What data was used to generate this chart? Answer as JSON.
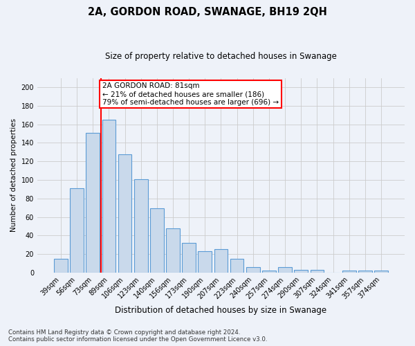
{
  "title": "2A, GORDON ROAD, SWANAGE, BH19 2QH",
  "subtitle": "Size of property relative to detached houses in Swanage",
  "xlabel": "Distribution of detached houses by size in Swanage",
  "ylabel": "Number of detached properties",
  "categories": [
    "39sqm",
    "56sqm",
    "73sqm",
    "89sqm",
    "106sqm",
    "123sqm",
    "140sqm",
    "156sqm",
    "173sqm",
    "190sqm",
    "207sqm",
    "223sqm",
    "240sqm",
    "257sqm",
    "274sqm",
    "290sqm",
    "307sqm",
    "324sqm",
    "341sqm",
    "357sqm",
    "374sqm"
  ],
  "values": [
    15,
    91,
    151,
    165,
    128,
    101,
    69,
    48,
    32,
    23,
    25,
    15,
    6,
    2,
    6,
    3,
    3,
    0,
    2,
    2,
    2
  ],
  "bar_color": "#c9d9eb",
  "bar_edge_color": "#5b9bd5",
  "bar_edge_width": 0.8,
  "grid_color": "#cccccc",
  "background_color": "#eef2f9",
  "red_line_x": 2.5,
  "annotation_text": "2A GORDON ROAD: 81sqm\n← 21% of detached houses are smaller (186)\n79% of semi-detached houses are larger (696) →",
  "annotation_box_color": "white",
  "annotation_box_edge_color": "red",
  "ylim": [
    0,
    210
  ],
  "yticks": [
    0,
    20,
    40,
    60,
    80,
    100,
    120,
    140,
    160,
    180,
    200
  ],
  "footnote1": "Contains HM Land Registry data © Crown copyright and database right 2024.",
  "footnote2": "Contains public sector information licensed under the Open Government Licence v3.0.",
  "title_fontsize": 10.5,
  "subtitle_fontsize": 8.5,
  "tick_fontsize": 7,
  "ylabel_fontsize": 7.5,
  "xlabel_fontsize": 8.5,
  "footnote_fontsize": 6.2,
  "annot_fontsize": 7.5
}
